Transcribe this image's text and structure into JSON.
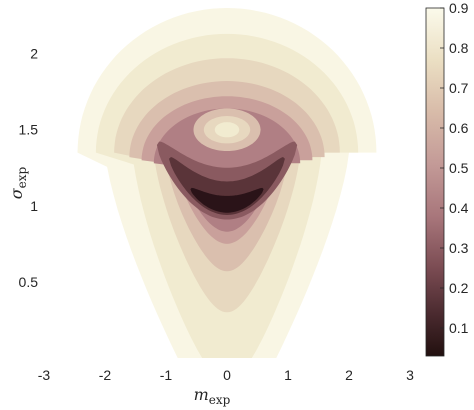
{
  "chart_data": {
    "type": "heatmap",
    "subtype": "filled-contour",
    "xlabel": {
      "symbol": "m",
      "subscript": "exp"
    },
    "ylabel": {
      "symbol": "σ",
      "subscript": "exp"
    },
    "xlim": [
      -3,
      3
    ],
    "ylim": [
      0,
      2.3
    ],
    "x_ticks": [
      -3,
      -2,
      -1,
      0,
      1,
      2,
      3
    ],
    "x_tick_labels": [
      "-3",
      "-2",
      "-1",
      "0",
      "1",
      "2",
      "3"
    ],
    "y_ticks": [
      0.5,
      1,
      1.5,
      2
    ],
    "y_tick_labels": [
      "0.5",
      "1",
      "1.5",
      "2"
    ],
    "colorbar": {
      "range": [
        0.03,
        0.9
      ],
      "ticks": [
        0.1,
        0.2,
        0.3,
        0.4,
        0.5,
        0.6,
        0.7,
        0.8,
        0.9
      ],
      "tick_labels": [
        "0.1",
        "0.2",
        "0.3",
        "0.4",
        "0.5",
        "0.6",
        "0.7",
        "0.8",
        "0.9"
      ],
      "colors": [
        "#2a1318",
        "#5a3439",
        "#8a5a60",
        "#b07f84",
        "#c9a09b",
        "#dabfae",
        "#e7d8bf",
        "#f1ebd0",
        "#f9f6e4"
      ]
    },
    "contour_levels": [
      0.1,
      0.2,
      0.3,
      0.4,
      0.5,
      0.6,
      0.7,
      0.8
    ],
    "features": {
      "minimum": {
        "m": 0.0,
        "sigma": 1.0,
        "value": 0.03
      },
      "local_maximum": {
        "m": 0.0,
        "sigma": 1.5,
        "value": 0.7
      },
      "region_max_value": 0.9
    },
    "grid": false,
    "grid_note": "no grid lines; colorbar on right"
  }
}
